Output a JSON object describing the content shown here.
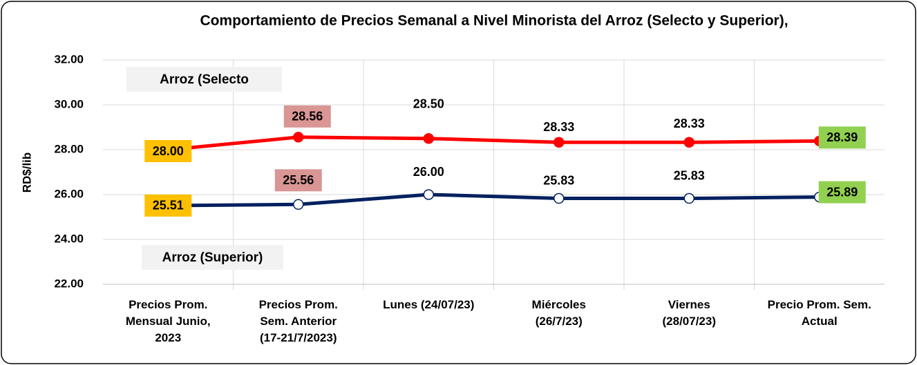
{
  "chart_data": {
    "type": "line",
    "title": "Comportamiento  de Precios Semanal a Nivel Minorista del Arroz (Selecto y Superior),",
    "ylabel": "RD$/lib",
    "categories": [
      "Precios Prom.\nMensual Junio,\n2023",
      "Precios Prom.\nSem. Anterior\n(17-21/7/2023)",
      "Lunes  (24/07/23)",
      "Miércoles\n(26/7/23)",
      "Viernes\n(28/07/23)",
      "Precio Prom. Sem.\nActual"
    ],
    "ylim": [
      22,
      32
    ],
    "yticks": [
      {
        "value": 22,
        "label": "22.00"
      },
      {
        "value": 24,
        "label": "24.00"
      },
      {
        "value": 26,
        "label": "26.00"
      },
      {
        "value": 28,
        "label": "28.00"
      },
      {
        "value": 30,
        "label": "30.00"
      },
      {
        "value": 32,
        "label": "32.00"
      }
    ],
    "grid": true,
    "label_colors": [
      "#ffc000",
      "#d99694",
      null,
      null,
      null,
      "#92d050"
    ],
    "series": [
      {
        "name": "Arroz (Selecto",
        "color": "#ff0000",
        "marker_fill": "#ff0000",
        "values": [
          28.0,
          28.56,
          28.5,
          28.33,
          28.33,
          28.39
        ],
        "value_labels": [
          "28.00",
          "28.56",
          "28.50",
          "28.33",
          "28.33",
          "28.39"
        ]
      },
      {
        "name": "Arroz (Superior)",
        "color": "#002060",
        "marker_fill": "#ffffff",
        "values": [
          25.51,
          25.56,
          26.0,
          25.83,
          25.83,
          25.89
        ],
        "value_labels": [
          "25.51",
          "25.56",
          "26.00",
          "25.83",
          "25.83",
          "25.89"
        ]
      }
    ]
  }
}
